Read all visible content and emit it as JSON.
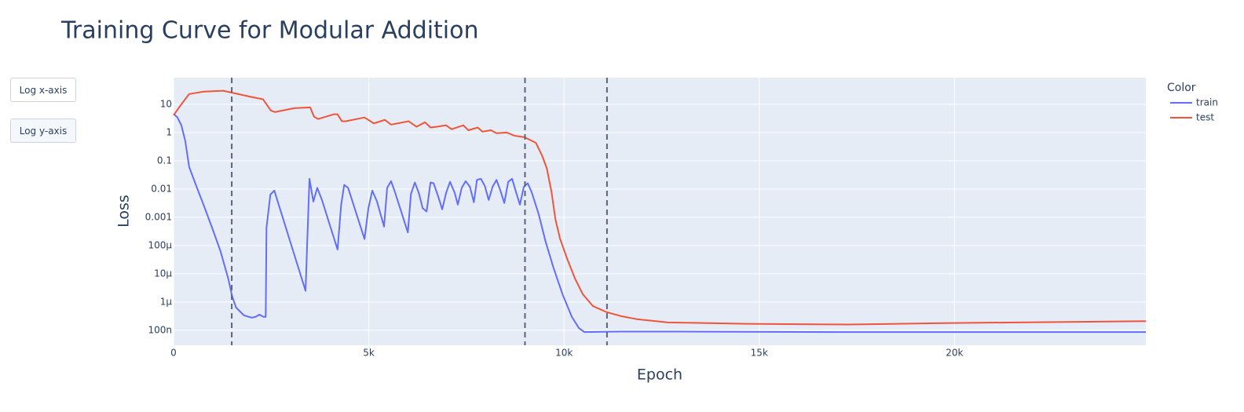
{
  "buttons": [
    "Log x-axis",
    "Log y-axis"
  ],
  "chart_data": {
    "type": "line",
    "title": "Training Curve for Modular Addition",
    "x_label": "Epoch",
    "y_label": "Loss",
    "legend_title": "Color",
    "ylog": true,
    "grid": true,
    "xlim": [
      0,
      24900
    ],
    "ylim": [
      2.95e-08,
      87
    ],
    "xticks": [
      0,
      {
        "value": 5000,
        "label": "5k"
      },
      {
        "value": 10000,
        "label": "10k"
      },
      {
        "value": 15000,
        "label": "15k"
      },
      {
        "value": 20000,
        "label": "20k"
      }
    ],
    "yticks": [
      10,
      1,
      0.1,
      0.01,
      0.001,
      {
        "value": 0.0001,
        "label": "100μ"
      },
      {
        "value": 1e-05,
        "label": "10μ"
      },
      {
        "value": 1e-06,
        "label": "1μ"
      },
      {
        "value": 1e-07,
        "label": "100n"
      }
    ],
    "vlines": [
      1490,
      9000,
      11100
    ],
    "vline_color": "#5b6579",
    "series": [
      {
        "name": "train",
        "color": "#636efa",
        "x": [
          0,
          100,
          200,
          300,
          400,
          600,
          800,
          1000,
          1200,
          1400,
          1500,
          1600,
          1800,
          2000,
          2100,
          2200,
          2300,
          2360,
          2380,
          2480,
          2580,
          3380,
          3480,
          3580,
          3680,
          3800,
          4200,
          4290,
          4370,
          4470,
          4890,
          4990,
          5090,
          5210,
          5390,
          5470,
          5570,
          5670,
          6000,
          6080,
          6180,
          6280,
          6380,
          6480,
          6580,
          6660,
          6780,
          6880,
          6980,
          7080,
          7200,
          7280,
          7380,
          7480,
          7590,
          7690,
          7770,
          7870,
          7970,
          8070,
          8170,
          8270,
          8370,
          8470,
          8570,
          8670,
          8770,
          8870,
          8970,
          9070,
          9170,
          9350,
          9520,
          9720,
          9960,
          10200,
          10380,
          10520,
          11450,
          13000,
          17000,
          24900
        ],
        "values": [
          4.6,
          3.4,
          1.8,
          0.49,
          0.06,
          0.011,
          0.0021,
          0.00038,
          6.4e-05,
          6.8e-06,
          1.6e-06,
          6.4e-07,
          3.4e-07,
          2.8e-07,
          3e-07,
          3.6e-07,
          3e-07,
          3e-07,
          0.00044,
          0.0064,
          0.0088,
          2.5e-06,
          0.023,
          0.0036,
          0.011,
          0.0041,
          7.2e-05,
          0.0026,
          0.014,
          0.011,
          0.00017,
          0.0021,
          0.0088,
          0.0036,
          0.00047,
          0.011,
          0.019,
          0.0078,
          0.00029,
          0.0068,
          0.017,
          0.0073,
          0.0021,
          0.0016,
          0.017,
          0.016,
          0.0053,
          0.0019,
          0.0073,
          0.018,
          0.0073,
          0.0028,
          0.011,
          0.019,
          0.012,
          0.0034,
          0.021,
          0.023,
          0.013,
          0.0041,
          0.012,
          0.021,
          0.0088,
          0.0032,
          0.018,
          0.023,
          0.0078,
          0.0028,
          0.012,
          0.016,
          0.0078,
          0.0013,
          0.00015,
          1.8e-05,
          1.9e-06,
          3e-07,
          1.2e-07,
          8.7e-08,
          9e-08,
          9e-08,
          8.7e-08,
          8.7e-08
        ]
      },
      {
        "name": "test",
        "color": "#ef553b",
        "x": [
          0,
          200,
          400,
          780,
          1270,
          1590,
          2000,
          2290,
          2490,
          2600,
          3100,
          3500,
          3600,
          3700,
          4100,
          4200,
          4310,
          4410,
          4890,
          5130,
          5410,
          5570,
          6020,
          6220,
          6440,
          6580,
          6740,
          6980,
          7120,
          7420,
          7550,
          7790,
          7910,
          8130,
          8270,
          8530,
          8730,
          8990,
          9280,
          9440,
          9560,
          9680,
          9780,
          9900,
          10080,
          10280,
          10480,
          10740,
          11090,
          11450,
          11850,
          12660,
          14670,
          17280,
          19700,
          24900
        ],
        "values": [
          4.1,
          10,
          23,
          28,
          30,
          24,
          18,
          15,
          6,
          5.3,
          7.3,
          7.7,
          3.6,
          3.0,
          4.4,
          4.4,
          2.5,
          2.5,
          3.4,
          2.1,
          2.8,
          1.9,
          2.5,
          1.6,
          2.3,
          1.5,
          1.6,
          1.8,
          1.3,
          1.8,
          1.2,
          1.5,
          1.07,
          1.2,
          0.94,
          1.0,
          0.77,
          0.68,
          0.43,
          0.15,
          0.053,
          0.0078,
          0.00083,
          0.00017,
          3.4e-05,
          6.8e-06,
          1.9e-06,
          7.2e-07,
          4.4e-07,
          3.2e-07,
          2.5e-07,
          1.9e-07,
          1.7e-07,
          1.6e-07,
          1.8e-07,
          2.1e-07
        ]
      }
    ]
  }
}
